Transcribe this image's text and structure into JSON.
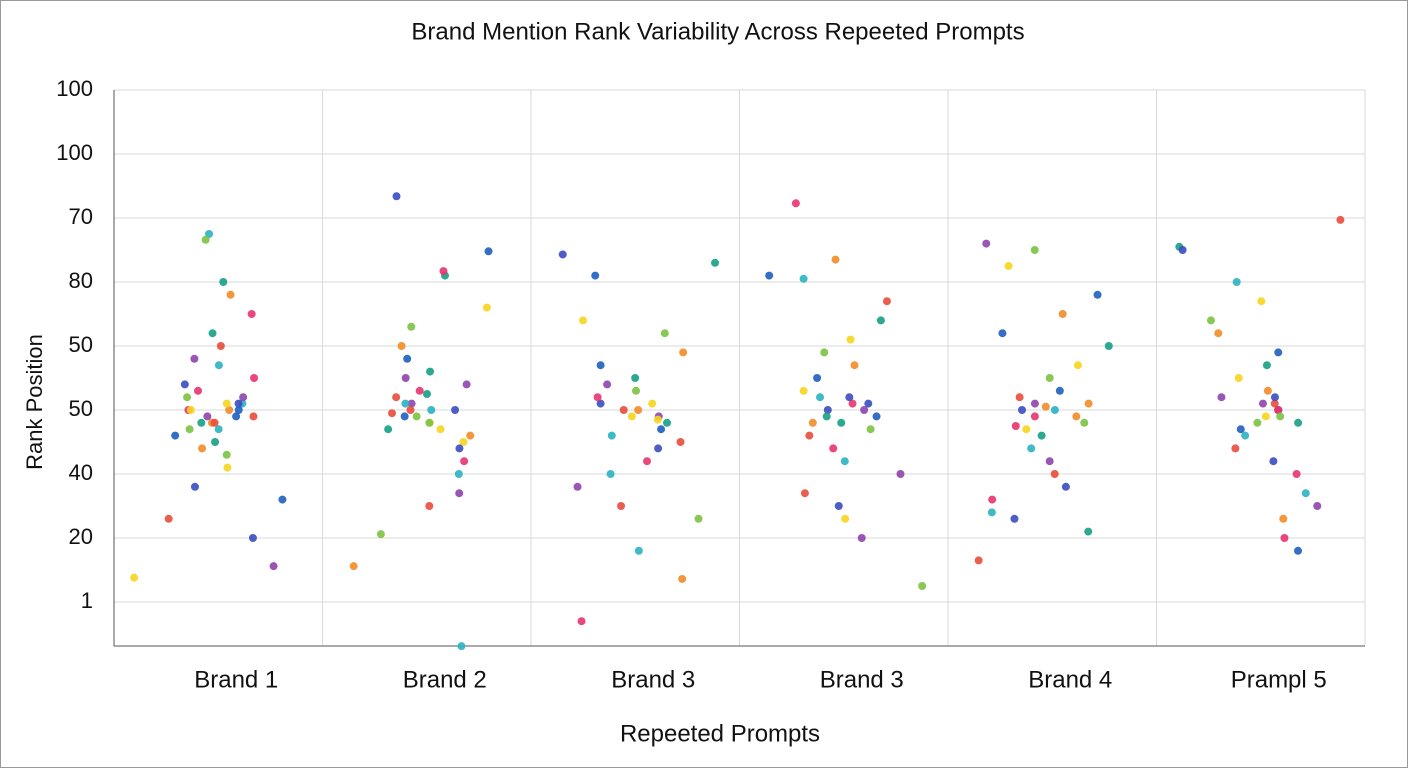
{
  "chart_data": {
    "type": "scatter",
    "title": "Brand Mention Rank Variability Across Repeeted Prompts",
    "x_label": "Repeeted Prompts",
    "y_label": "Rank Position",
    "categories": [
      "Brand 1",
      "Brand 2",
      "Brand 3",
      "Brand 3",
      "Brand 4",
      "Prampl 5"
    ],
    "values": [
      [
        49,
        50,
        48,
        51,
        47,
        52,
        50,
        49,
        48,
        51,
        46,
        53,
        50,
        47,
        52,
        49,
        51,
        48,
        45,
        54,
        50,
        55,
        44,
        57,
        43,
        58,
        41,
        60,
        62,
        38,
        36,
        65,
        68,
        77.5,
        76.6,
        25.6,
        23.8,
        33,
        70,
        30
      ],
      [
        50,
        49,
        51,
        48,
        52,
        47,
        50,
        49,
        53,
        46,
        51,
        48,
        54,
        45,
        50,
        56,
        44,
        58,
        42,
        60,
        40,
        63,
        37,
        66,
        35,
        71,
        83.4,
        74.8,
        71.7,
        25.6,
        13.1,
        30.6,
        55,
        47,
        49.5,
        52.5
      ],
      [
        49,
        50,
        48,
        51,
        47,
        52,
        50,
        46,
        53,
        49,
        51,
        45,
        55,
        44,
        57,
        42,
        59,
        40,
        62,
        38,
        64,
        35,
        73,
        74.3,
        71,
        17,
        23.6,
        28,
        33,
        54,
        48.5
      ],
      [
        50,
        49,
        51,
        48,
        52,
        47,
        50,
        53,
        46,
        49,
        51,
        55,
        44,
        57,
        42,
        59,
        40,
        61,
        37,
        64,
        35,
        71,
        82.3,
        73.5,
        70.5,
        22.5,
        30,
        33,
        67,
        48,
        52
      ],
      [
        49,
        50,
        48,
        51,
        47,
        52,
        46,
        50,
        53,
        49,
        51,
        44,
        55,
        42,
        57,
        40,
        60,
        38,
        62,
        36,
        65,
        34,
        75,
        76,
        72.5,
        26.5,
        31,
        33,
        68,
        47.5,
        50.5
      ],
      [
        50,
        49,
        51,
        48,
        52,
        47,
        50,
        53,
        46,
        49,
        51,
        55,
        44,
        57,
        42,
        59,
        40,
        62,
        37,
        64,
        35,
        67,
        79.7,
        75.5,
        75,
        28,
        30,
        33,
        70,
        48,
        52
      ]
    ],
    "colors": [
      "#1f5fbf",
      "#e8336f",
      "#f28c28",
      "#2bb3c0",
      "#7cc242",
      "#8e44ad",
      "#f7d51d",
      "#e74c3c",
      "#16a085",
      "#3b4cc0"
    ],
    "ylim": [
      13.125,
      100
    ],
    "yticks": [
      100,
      {
        "value": 90,
        "label": "100"
      },
      {
        "value": 80,
        "label": "70"
      },
      {
        "value": 70,
        "label": "80"
      },
      {
        "value": 60,
        "label": "50"
      },
      50,
      40,
      {
        "value": 30,
        "label": "20"
      },
      {
        "value": 20,
        "label": "1"
      }
    ],
    "grid": true
  }
}
